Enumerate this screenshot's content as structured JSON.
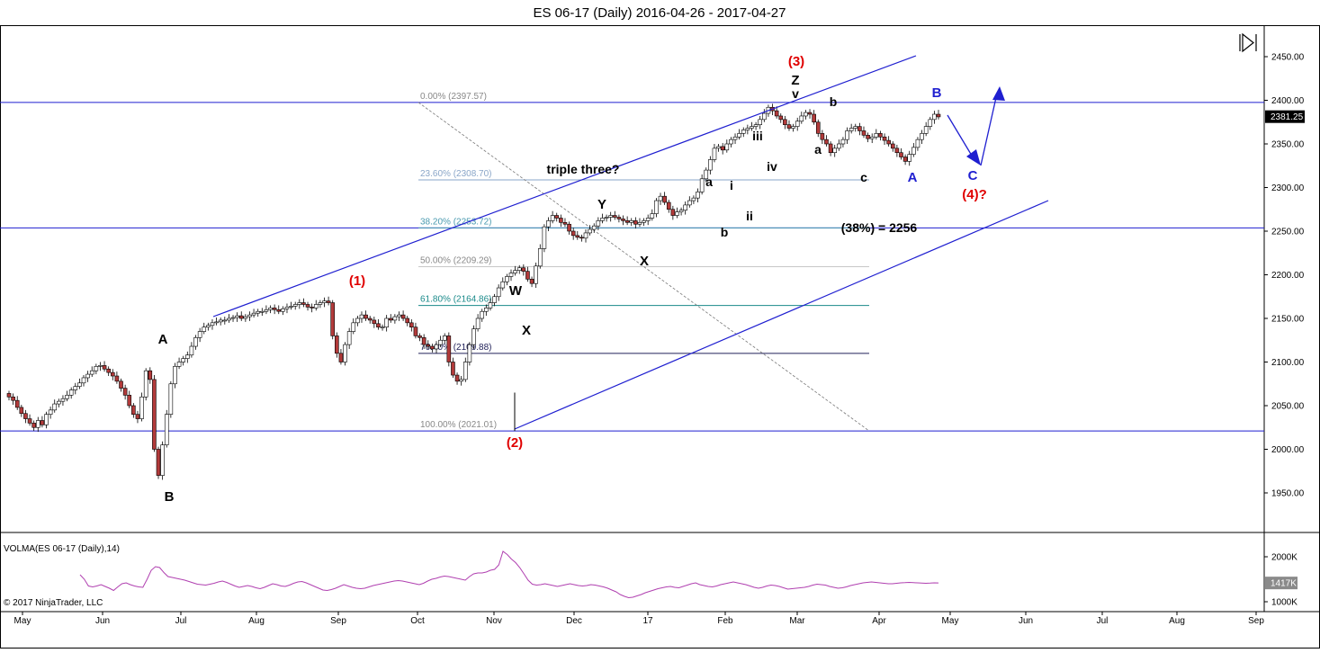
{
  "header": {
    "title": "ES 06-17 (Daily)  2016-04-26 - 2017-04-27"
  },
  "playback_icon": "skip-forward-icon",
  "chart_data": [
    {
      "type": "candlestick",
      "title": "ES 06-17 (Daily)  2016-04-26 - 2017-04-27",
      "y_ticks": [
        "2450.00",
        "2400.00",
        "2350.00",
        "2300.00",
        "2250.00",
        "2200.00",
        "2150.00",
        "2100.00",
        "2050.00",
        "2000.00",
        "1950.00"
      ],
      "y_tick_values": [
        2450,
        2400,
        2350,
        2300,
        2250,
        2200,
        2150,
        2100,
        2050,
        2000,
        1950
      ],
      "ylim": [
        1905,
        2490
      ],
      "x_ticks": [
        "May",
        "Jun",
        "Jul",
        "Aug",
        "Sep",
        "Oct",
        "Nov",
        "Dec",
        "17",
        "Feb",
        "Mar",
        "Apr",
        "May",
        "Jun",
        "Jul",
        "Aug",
        "Sep"
      ],
      "last_price_label": "2381.25",
      "last_price": 2381.25,
      "colors": {
        "up": "#ffffff",
        "down": "#b23a3a",
        "wick": "#000000",
        "lines": "#1f1fd0",
        "fib_text": "#888888",
        "fib_teal": "#1a8a8a",
        "fib_navy": "#22225a",
        "volma": "#b040b0",
        "red": "#e00000",
        "blue": "#1f1fd0"
      },
      "candles_close": [
        2060,
        2056,
        2048,
        2041,
        2035,
        2030,
        2025,
        2033,
        2028,
        2040,
        2045,
        2052,
        2055,
        2058,
        2062,
        2068,
        2072,
        2076,
        2082,
        2086,
        2090,
        2095,
        2096,
        2092,
        2088,
        2084,
        2078,
        2070,
        2062,
        2050,
        2040,
        2035,
        2060,
        2090,
        2080,
        2000,
        1970,
        2005,
        2040,
        2075,
        2095,
        2100,
        2104,
        2108,
        2118,
        2128,
        2135,
        2140,
        2142,
        2145,
        2146,
        2148,
        2148,
        2150,
        2151,
        2153,
        2150,
        2152,
        2154,
        2156,
        2158,
        2158,
        2160,
        2162,
        2160,
        2158,
        2161,
        2163,
        2164,
        2166,
        2168,
        2166,
        2163,
        2162,
        2166,
        2168,
        2170,
        2168,
        2130,
        2110,
        2100,
        2120,
        2135,
        2145,
        2150,
        2154,
        2150,
        2148,
        2144,
        2140,
        2140,
        2150,
        2148,
        2152,
        2154,
        2150,
        2145,
        2140,
        2130,
        2128,
        2120,
        2118,
        2115,
        2120,
        2125,
        2130,
        2100,
        2085,
        2078,
        2080,
        2100,
        2120,
        2138,
        2150,
        2158,
        2162,
        2168,
        2175,
        2185,
        2192,
        2198,
        2202,
        2205,
        2208,
        2204,
        2195,
        2190,
        2210,
        2230,
        2255,
        2262,
        2268,
        2265,
        2260,
        2258,
        2250,
        2245,
        2243,
        2242,
        2248,
        2252,
        2256,
        2262,
        2265,
        2266,
        2268,
        2266,
        2264,
        2262,
        2260,
        2262,
        2258,
        2260,
        2262,
        2265,
        2270,
        2285,
        2290,
        2283,
        2275,
        2268,
        2272,
        2274,
        2280,
        2285,
        2288,
        2295,
        2310,
        2320,
        2332,
        2345,
        2347,
        2343,
        2350,
        2355,
        2358,
        2362,
        2366,
        2368,
        2370,
        2372,
        2378,
        2385,
        2392,
        2388,
        2382,
        2378,
        2372,
        2368,
        2370,
        2376,
        2382,
        2386,
        2384,
        2375,
        2362,
        2355,
        2350,
        2340,
        2345,
        2350,
        2355,
        2365,
        2368,
        2370,
        2365,
        2360,
        2356,
        2358,
        2362,
        2358,
        2354,
        2350,
        2345,
        2340,
        2335,
        2330,
        2338,
        2346,
        2355,
        2362,
        2370,
        2378,
        2384,
        2381
      ],
      "fib_levels": [
        {
          "label": "0.00% (2397.57)",
          "value": 2397.57
        },
        {
          "label": "23.60% (2308.70)",
          "value": 2308.7
        },
        {
          "label": "38.20% (2253.72)",
          "value": 2253.72
        },
        {
          "label": "50.00% (2209.29)",
          "value": 2209.29
        },
        {
          "label": "61.80% (2164.86)",
          "value": 2164.86
        },
        {
          "label": "76.40% (2109.88)",
          "value": 2109.88
        },
        {
          "label": "100.00% (2021.01)",
          "value": 2021.01
        }
      ],
      "horizontal_lines": [
        2397.57,
        2253.72,
        2021.01
      ],
      "annotations": {
        "A_left": "A",
        "B_left": "B",
        "wave1": "(1)",
        "wave2": "(2)",
        "wave3": "(3)",
        "wave4": "(4)?",
        "W": "W",
        "X1": "X",
        "Y": "Y",
        "X2": "X",
        "Z": "Z",
        "triple": "triple three?",
        "a1": "a",
        "b1": "b",
        "i": "i",
        "ii": "ii",
        "iii": "iii",
        "iv": "iv",
        "v": "v",
        "a2": "a",
        "b2": "b",
        "c2": "c",
        "A_blue": "A",
        "B_blue": "B",
        "C_blue": "C",
        "pct38": "(38%) = 2256"
      }
    },
    {
      "type": "line",
      "title": "VOLMA(ES 06-17 (Daily),14)",
      "y_ticks": [
        "2000K",
        "1000K"
      ],
      "y_tick_values": [
        2000,
        1000
      ],
      "ylim": [
        900,
        2300
      ],
      "last_value_label": "1417K",
      "values": [
        1600,
        1500,
        1350,
        1330,
        1350,
        1380,
        1340,
        1300,
        1250,
        1330,
        1400,
        1420,
        1380,
        1350,
        1330,
        1320,
        1500,
        1700,
        1780,
        1760,
        1650,
        1560,
        1540,
        1520,
        1500,
        1480,
        1450,
        1420,
        1390,
        1380,
        1370,
        1390,
        1410,
        1440,
        1460,
        1430,
        1390,
        1350,
        1320,
        1340,
        1360,
        1340,
        1310,
        1290,
        1320,
        1360,
        1400,
        1380,
        1350,
        1340,
        1370,
        1410,
        1440,
        1450,
        1420,
        1380,
        1340,
        1300,
        1260,
        1250,
        1270,
        1300,
        1340,
        1380,
        1350,
        1320,
        1300,
        1290,
        1300,
        1330,
        1360,
        1380,
        1400,
        1420,
        1440,
        1460,
        1470,
        1460,
        1440,
        1420,
        1400,
        1380,
        1410,
        1460,
        1500,
        1520,
        1550,
        1570,
        1560,
        1540,
        1520,
        1500,
        1480,
        1560,
        1620,
        1640,
        1640,
        1660,
        1700,
        1720,
        1820,
        2120,
        2050,
        1950,
        1870,
        1760,
        1620,
        1480,
        1390,
        1370,
        1380,
        1400,
        1380,
        1360,
        1340,
        1360,
        1380,
        1400,
        1380,
        1360,
        1350,
        1360,
        1380,
        1370,
        1350,
        1330,
        1300,
        1260,
        1220,
        1160,
        1120,
        1090,
        1100,
        1130,
        1160,
        1200,
        1230,
        1260,
        1290,
        1310,
        1330,
        1340,
        1320,
        1310,
        1340,
        1370,
        1400,
        1420,
        1380,
        1360,
        1340,
        1330,
        1350,
        1380,
        1400,
        1420,
        1440,
        1420,
        1400,
        1380,
        1350,
        1320,
        1300,
        1320,
        1350,
        1370,
        1360,
        1340,
        1310,
        1280,
        1290,
        1300,
        1310,
        1320,
        1340,
        1370,
        1390,
        1380,
        1370,
        1340,
        1320,
        1300,
        1310,
        1330,
        1360,
        1380,
        1400,
        1420,
        1430,
        1440,
        1430,
        1420,
        1410,
        1400,
        1400,
        1410,
        1420,
        1425,
        1430,
        1425,
        1420,
        1415,
        1410,
        1415,
        1420,
        1417
      ]
    }
  ],
  "footer": {
    "copyright": "© 2017 NinjaTrader, LLC"
  }
}
